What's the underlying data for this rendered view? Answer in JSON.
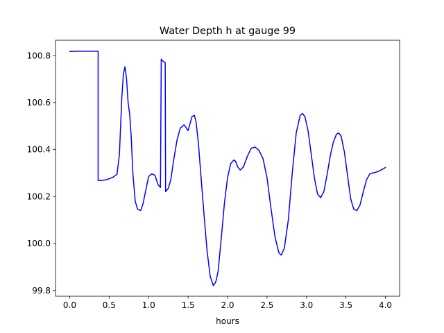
{
  "chart_data": {
    "type": "line",
    "title": "Water Depth h at gauge 99",
    "xlabel": "hours",
    "ylabel": "",
    "xlim": [
      -0.18,
      4.18
    ],
    "ylim": [
      99.775,
      100.865
    ],
    "xticks": [
      0.0,
      0.5,
      1.0,
      1.5,
      2.0,
      2.5,
      3.0,
      3.5,
      4.0
    ],
    "xtick_labels": [
      "0.0",
      "0.5",
      "1.0",
      "1.5",
      "2.0",
      "2.5",
      "3.0",
      "3.5",
      "4.0"
    ],
    "yticks": [
      99.8,
      100.0,
      100.2,
      100.4,
      100.6,
      100.8
    ],
    "ytick_labels": [
      "99.8",
      "100.0",
      "100.2",
      "100.4",
      "100.6",
      "100.8"
    ],
    "grid": false,
    "series": [
      {
        "color": "#0000ff",
        "x": [
          0.0,
          0.1,
          0.2,
          0.3,
          0.36,
          0.36,
          0.4,
          0.45,
          0.5,
          0.55,
          0.6,
          0.63,
          0.66,
          0.68,
          0.7,
          0.72,
          0.74,
          0.76,
          0.78,
          0.8,
          0.83,
          0.86,
          0.9,
          0.93,
          0.96,
          1.0,
          1.04,
          1.08,
          1.12,
          1.15,
          1.16,
          1.165,
          1.2,
          1.21,
          1.215,
          1.22,
          1.25,
          1.28,
          1.32,
          1.36,
          1.4,
          1.45,
          1.5,
          1.55,
          1.58,
          1.6,
          1.63,
          1.66,
          1.7,
          1.74,
          1.78,
          1.82,
          1.85,
          1.88,
          1.92,
          1.96,
          2.0,
          2.04,
          2.08,
          2.1,
          2.13,
          2.16,
          2.2,
          2.25,
          2.3,
          2.35,
          2.4,
          2.45,
          2.5,
          2.55,
          2.6,
          2.65,
          2.68,
          2.72,
          2.77,
          2.82,
          2.87,
          2.92,
          2.95,
          2.98,
          3.02,
          3.06,
          3.1,
          3.14,
          3.18,
          3.22,
          3.26,
          3.3,
          3.34,
          3.38,
          3.41,
          3.44,
          3.48,
          3.52,
          3.56,
          3.6,
          3.64,
          3.68,
          3.72,
          3.76,
          3.8,
          3.84,
          3.88,
          3.92,
          3.96,
          4.0
        ],
        "y": [
          100.817,
          100.818,
          100.818,
          100.818,
          100.818,
          100.268,
          100.268,
          100.27,
          100.275,
          100.282,
          100.295,
          100.38,
          100.62,
          100.72,
          100.752,
          100.7,
          100.6,
          100.55,
          100.45,
          100.3,
          100.18,
          100.145,
          100.14,
          100.17,
          100.22,
          100.285,
          100.296,
          100.29,
          100.25,
          100.238,
          100.785,
          100.78,
          100.772,
          100.77,
          100.22,
          100.222,
          100.235,
          100.27,
          100.36,
          100.44,
          100.49,
          100.505,
          100.48,
          100.54,
          100.545,
          100.52,
          100.43,
          100.3,
          100.13,
          99.97,
          99.86,
          99.82,
          99.835,
          99.88,
          100.02,
          100.17,
          100.28,
          100.34,
          100.355,
          100.35,
          100.325,
          100.312,
          100.325,
          100.37,
          100.405,
          100.41,
          100.395,
          100.36,
          100.28,
          100.15,
          100.03,
          99.96,
          99.95,
          99.98,
          100.1,
          100.3,
          100.47,
          100.545,
          100.553,
          100.54,
          100.48,
          100.38,
          100.28,
          100.21,
          100.195,
          100.22,
          100.29,
          100.37,
          100.43,
          100.465,
          100.47,
          100.455,
          100.39,
          100.29,
          100.19,
          100.145,
          100.14,
          100.165,
          100.22,
          100.27,
          100.295,
          100.3,
          100.303,
          100.308,
          100.315,
          100.323
        ]
      }
    ]
  }
}
